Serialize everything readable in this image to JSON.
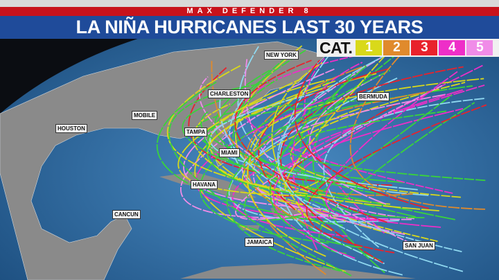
{
  "header": {
    "brand": "MAX DEFENDER 8",
    "title": "LA NIÑA HURRICANES LAST 30 YEARS"
  },
  "legend": {
    "label": "CAT.",
    "categories": [
      {
        "label": "1",
        "color": "#d9d91a"
      },
      {
        "label": "2",
        "color": "#e08a2c"
      },
      {
        "label": "3",
        "color": "#e8222c"
      },
      {
        "label": "4",
        "color": "#ee2ec8"
      },
      {
        "label": "5",
        "color": "#f08ce8"
      }
    ],
    "tropical_color": "#39d43a",
    "depression_color": "#8fd8f0"
  },
  "cities": [
    "NEW YORK",
    "CHARLESTON",
    "BERMUDA",
    "MOBILE",
    "HOUSTON",
    "TAMPA",
    "MIAMI",
    "HAVANA",
    "CANCUN",
    "JAMAICA",
    "SAN JUAN"
  ],
  "colors": {
    "ocean": "#3a78b0",
    "land": "#8c8c8c",
    "red_band": "#c8121b",
    "blue_band": "#1f4b9a"
  }
}
